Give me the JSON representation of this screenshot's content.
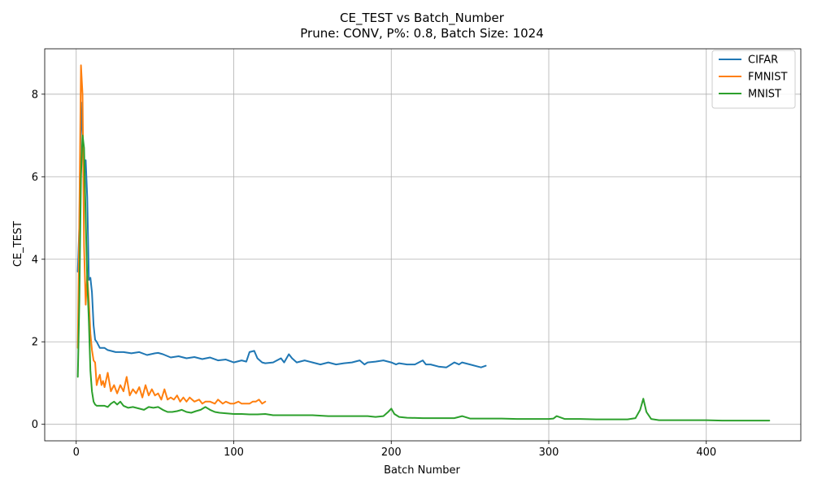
{
  "chart_data": {
    "type": "line",
    "title": "CE_TEST vs Batch_Number",
    "subtitle": "Prune: CONV, P%: 0.8, Batch Size: 1024",
    "xlabel": "Batch Number",
    "ylabel": "CE_TEST",
    "xlim": [
      -20,
      460
    ],
    "ylim": [
      -0.4,
      9.1
    ],
    "xticks": [
      0,
      100,
      200,
      300,
      400
    ],
    "yticks": [
      0,
      2,
      4,
      6,
      8
    ],
    "grid": true,
    "legend_position": "top-right",
    "series": [
      {
        "name": "CIFAR",
        "color": "#1f77b4",
        "x": [
          1,
          2,
          3,
          4,
          5,
          6,
          7,
          8,
          9,
          10,
          11,
          12,
          13,
          15,
          18,
          20,
          25,
          30,
          35,
          40,
          45,
          50,
          52,
          55,
          60,
          65,
          70,
          75,
          80,
          85,
          90,
          95,
          100,
          105,
          108,
          110,
          113,
          115,
          118,
          120,
          125,
          130,
          132,
          135,
          137,
          140,
          145,
          150,
          155,
          160,
          165,
          170,
          175,
          180,
          183,
          185,
          190,
          195,
          200,
          203,
          205,
          210,
          215,
          220,
          222,
          225,
          230,
          235,
          240,
          243,
          245,
          250,
          255,
          257,
          260
        ],
        "y": [
          3.7,
          4.8,
          7.8,
          7.0,
          6.0,
          6.4,
          5.5,
          3.5,
          3.55,
          3.2,
          2.4,
          2.05,
          2.0,
          1.85,
          1.85,
          1.8,
          1.75,
          1.75,
          1.72,
          1.75,
          1.68,
          1.72,
          1.73,
          1.7,
          1.62,
          1.65,
          1.6,
          1.63,
          1.58,
          1.62,
          1.55,
          1.57,
          1.5,
          1.55,
          1.52,
          1.75,
          1.78,
          1.6,
          1.5,
          1.48,
          1.5,
          1.6,
          1.5,
          1.7,
          1.6,
          1.5,
          1.55,
          1.5,
          1.45,
          1.5,
          1.45,
          1.48,
          1.5,
          1.55,
          1.45,
          1.5,
          1.52,
          1.55,
          1.5,
          1.45,
          1.48,
          1.45,
          1.45,
          1.55,
          1.45,
          1.45,
          1.4,
          1.38,
          1.5,
          1.45,
          1.5,
          1.45,
          1.4,
          1.38,
          1.42
        ]
      },
      {
        "name": "FMNIST",
        "color": "#ff7f0e",
        "x": [
          1,
          2,
          3,
          4,
          5,
          6,
          7,
          8,
          9,
          10,
          11,
          12,
          13,
          14,
          15,
          16,
          17,
          18,
          20,
          22,
          24,
          26,
          28,
          30,
          32,
          34,
          36,
          38,
          40,
          42,
          44,
          46,
          48,
          50,
          52,
          54,
          56,
          58,
          60,
          62,
          64,
          66,
          68,
          70,
          72,
          75,
          78,
          80,
          82,
          85,
          88,
          90,
          93,
          95,
          98,
          100,
          103,
          105,
          108,
          110,
          112,
          114,
          116,
          118,
          120
        ],
        "y": [
          1.85,
          5.0,
          8.7,
          8.0,
          4.3,
          2.9,
          3.6,
          3.0,
          2.2,
          1.8,
          1.55,
          1.5,
          0.95,
          1.1,
          1.2,
          0.95,
          1.05,
          0.9,
          1.25,
          0.8,
          0.95,
          0.75,
          0.95,
          0.8,
          1.15,
          0.7,
          0.85,
          0.75,
          0.9,
          0.65,
          0.95,
          0.7,
          0.85,
          0.7,
          0.75,
          0.6,
          0.85,
          0.6,
          0.65,
          0.6,
          0.7,
          0.55,
          0.65,
          0.55,
          0.65,
          0.55,
          0.6,
          0.5,
          0.55,
          0.55,
          0.5,
          0.6,
          0.5,
          0.55,
          0.5,
          0.5,
          0.55,
          0.5,
          0.5,
          0.5,
          0.55,
          0.55,
          0.6,
          0.5,
          0.55
        ]
      },
      {
        "name": "MNIST",
        "color": "#2ca02c",
        "x": [
          1,
          2,
          3,
          4,
          5,
          6,
          7,
          8,
          9,
          10,
          11,
          12,
          13,
          15,
          18,
          20,
          22,
          24,
          26,
          28,
          30,
          33,
          36,
          40,
          43,
          46,
          49,
          52,
          55,
          58,
          61,
          64,
          67,
          70,
          73,
          76,
          79,
          82,
          85,
          88,
          91,
          94,
          97,
          100,
          105,
          110,
          115,
          120,
          125,
          130,
          140,
          150,
          160,
          170,
          180,
          185,
          190,
          195,
          198,
          200,
          202,
          205,
          210,
          220,
          230,
          240,
          243,
          245,
          250,
          260,
          270,
          280,
          290,
          300,
          303,
          305,
          310,
          320,
          330,
          340,
          350,
          355,
          358,
          360,
          362,
          365,
          370,
          380,
          390,
          400,
          410,
          420,
          430,
          440
        ],
        "y": [
          1.15,
          3.0,
          6.0,
          7.0,
          6.7,
          5.0,
          3.5,
          2.5,
          1.3,
          0.8,
          0.55,
          0.48,
          0.45,
          0.45,
          0.45,
          0.42,
          0.5,
          0.55,
          0.48,
          0.55,
          0.45,
          0.4,
          0.42,
          0.38,
          0.35,
          0.42,
          0.4,
          0.42,
          0.35,
          0.3,
          0.3,
          0.32,
          0.35,
          0.3,
          0.28,
          0.32,
          0.35,
          0.42,
          0.35,
          0.3,
          0.28,
          0.27,
          0.26,
          0.25,
          0.25,
          0.24,
          0.24,
          0.25,
          0.22,
          0.22,
          0.22,
          0.22,
          0.2,
          0.2,
          0.2,
          0.2,
          0.18,
          0.2,
          0.3,
          0.38,
          0.25,
          0.18,
          0.16,
          0.15,
          0.15,
          0.15,
          0.18,
          0.2,
          0.14,
          0.14,
          0.14,
          0.13,
          0.13,
          0.13,
          0.14,
          0.2,
          0.13,
          0.13,
          0.12,
          0.12,
          0.12,
          0.15,
          0.35,
          0.62,
          0.3,
          0.13,
          0.1,
          0.1,
          0.1,
          0.1,
          0.09,
          0.09,
          0.09,
          0.09
        ]
      }
    ]
  }
}
